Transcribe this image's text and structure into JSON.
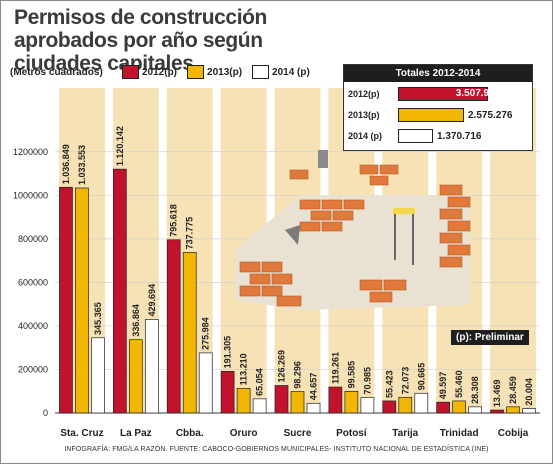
{
  "title": "Permisos de construcción aprobados por año según ciudades capitales",
  "unit_label": "(Metros cuadrados)",
  "legend": [
    {
      "label": "2012(p)",
      "color": "#c1132d"
    },
    {
      "label": "2013(p)",
      "color": "#f2b705"
    },
    {
      "label": "2014 (p)",
      "color": "#ffffff"
    }
  ],
  "totals": {
    "heading": "Totales 2012-2014",
    "rows": [
      {
        "year": "2012(p)",
        "value": 3507933,
        "label": "3.507.933",
        "color": "#c1132d"
      },
      {
        "year": "2013(p)",
        "value": 2575276,
        "label": "2.575.276",
        "color": "#f2b705"
      },
      {
        "year": "2014 (p)",
        "value": 1370716,
        "label": "1.370.716",
        "color": "#ffffff"
      }
    ]
  },
  "preliminary_note": "(p): Preliminar",
  "credit": "INFOGRAFÍA: FMG/LA RAZÓN. FUENTE: CABOCO-GOBIERNOS MUNICIPALES- INSTITUTO NACIONAL DE ESTADÍSTICA (INE)",
  "colors": {
    "y2012": "#c1132d",
    "y2013": "#f2b705",
    "y2014": "#ffffff",
    "column_band": "#f7e2b6",
    "grid": "#cfcfcf"
  },
  "chart_data": {
    "type": "bar",
    "categories": [
      "Sta. Cruz",
      "La Paz",
      "Cbba.",
      "Oruro",
      "Sucre",
      "Potosí",
      "Tarija",
      "Trinidad",
      "Cobija"
    ],
    "series": [
      {
        "name": "2012(p)",
        "values": [
          1036849,
          1120142,
          795618,
          191305,
          126269,
          119261,
          55423,
          49597,
          13469
        ],
        "labels": [
          "1.036.849",
          "1.120.142",
          "795.618",
          "191.305",
          "126.269",
          "119.261",
          "55.423",
          "49.597",
          "13.469"
        ]
      },
      {
        "name": "2013(p)",
        "values": [
          1033553,
          336864,
          737775,
          113210,
          98296,
          99585,
          72073,
          55460,
          28459
        ],
        "labels": [
          "1.033.553",
          "336.864",
          "737.775",
          "113.210",
          "98.296",
          "99.585",
          "72.073",
          "55.460",
          "28.459"
        ]
      },
      {
        "name": "2014 (p)",
        "values": [
          345365,
          429694,
          275984,
          65054,
          44657,
          70985,
          90665,
          28308,
          20004
        ],
        "labels": [
          "345.365",
          "429.694",
          "275.984",
          "65.054",
          "44.657",
          "70.985",
          "90.665",
          "28.308",
          "20.004"
        ]
      }
    ],
    "yticks": [
      0,
      200000,
      400000,
      600000,
      800000,
      1000000,
      1200000
    ],
    "ylim": [
      0,
      1300000
    ],
    "grid": true,
    "legend_position": "top-left"
  }
}
